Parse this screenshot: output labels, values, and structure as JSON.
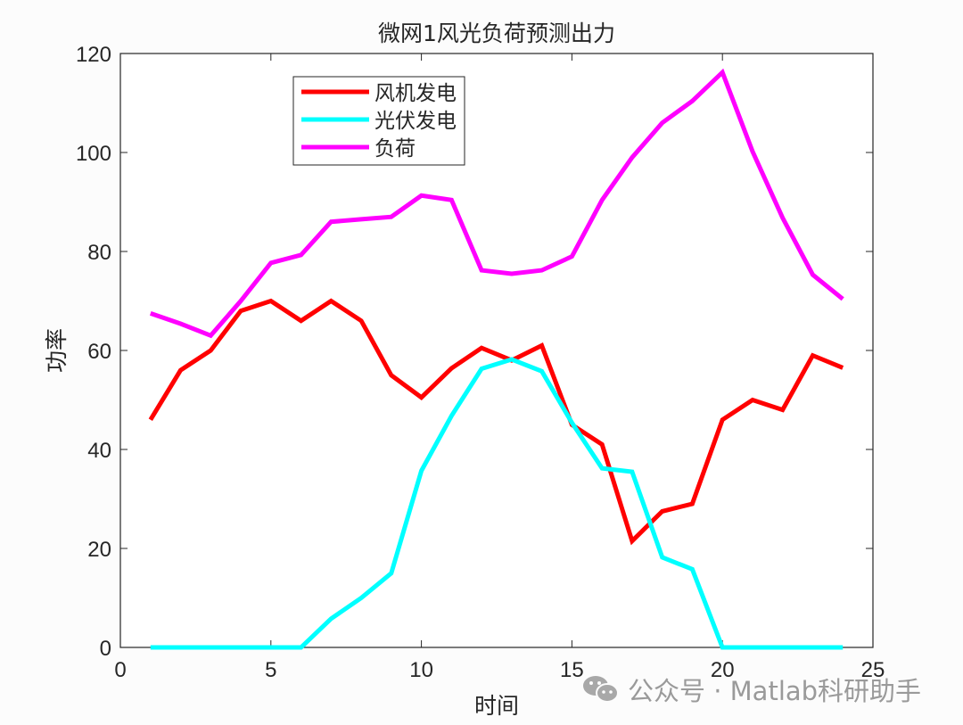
{
  "chart_data": {
    "type": "line",
    "title": "微网1风光负荷预测出力",
    "xlabel": "时间",
    "ylabel": "功率",
    "xlim": [
      0,
      25
    ],
    "ylim": [
      0,
      120
    ],
    "xticks": [
      0,
      5,
      10,
      15,
      20,
      25
    ],
    "yticks": [
      0,
      20,
      40,
      60,
      80,
      100,
      120
    ],
    "grid": false,
    "legend_position": "upper-left-inside",
    "x": [
      1,
      2,
      3,
      4,
      5,
      6,
      7,
      8,
      9,
      10,
      11,
      12,
      13,
      14,
      15,
      16,
      17,
      18,
      19,
      20,
      21,
      22,
      23,
      24
    ],
    "series": [
      {
        "name": "风机发电",
        "color": "#ff0000",
        "values": [
          46,
          56,
          60,
          68,
          70,
          66,
          70,
          66,
          55,
          50.5,
          56.4,
          60.5,
          58,
          61,
          45,
          41,
          21.5,
          27.5,
          29,
          46,
          50,
          48,
          59,
          56.5
        ]
      },
      {
        "name": "光伏发电",
        "color": "#00ffff",
        "values": [
          0,
          0,
          0,
          0,
          0,
          0,
          5.8,
          10,
          15,
          35.7,
          46.8,
          56.3,
          58.2,
          55.8,
          45.4,
          36.2,
          35.5,
          18.2,
          15.8,
          0,
          0,
          0,
          0,
          0
        ]
      },
      {
        "name": "负荷",
        "color": "#ff00ff",
        "values": [
          67.5,
          65.4,
          63,
          70,
          77.7,
          79.3,
          86,
          86.5,
          87,
          91.3,
          90.4,
          76.2,
          75.5,
          76.2,
          79,
          90.4,
          99,
          106,
          110.4,
          116.2,
          100.2,
          86.8,
          75.3,
          70.4
        ]
      }
    ]
  },
  "watermark": {
    "icon": "wechat-icon",
    "text": "公众号 · Matlab科研助手"
  }
}
